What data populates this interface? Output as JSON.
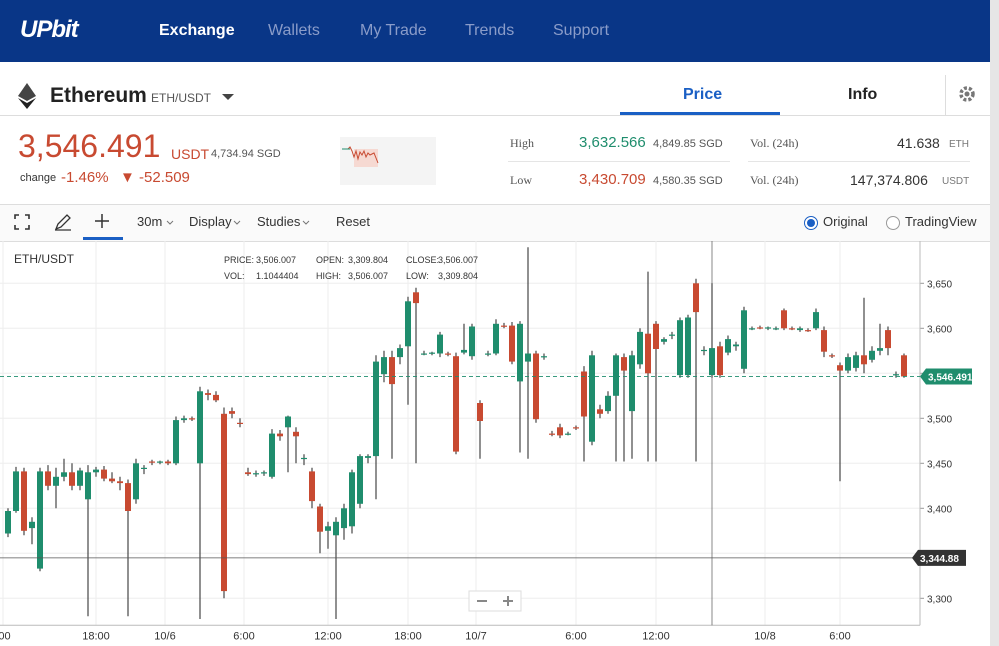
{
  "header": {
    "logo": "UPbit",
    "nav": [
      "Exchange",
      "Wallets",
      "My Trade",
      "Trends",
      "Support"
    ]
  },
  "market": {
    "name": "Ethereum",
    "pair": "ETH/USDT",
    "tabs": [
      "Price",
      "Info"
    ]
  },
  "ticker": {
    "price": "3,546.491",
    "currency": "USDT",
    "fiat": "4,734.94 SGD",
    "change_label": "change",
    "change_rate": "-1.46%",
    "change_amount": "▼ -52.509",
    "high": {
      "label": "High",
      "value": "3,632.566",
      "fiat": "4,849.85 SGD"
    },
    "low": {
      "label": "Low",
      "value": "3,430.709",
      "fiat": "4,580.35 SGD"
    },
    "vol_eth": {
      "label": "Vol. (24h)",
      "value": "41.638",
      "unit": "ETH"
    },
    "vol_usdt": {
      "label": "Vol. (24h)",
      "value": "147,374.806",
      "unit": "USDT"
    }
  },
  "toolbar": {
    "interval": "30m",
    "display": "Display",
    "studies": "Studies",
    "reset": "Reset",
    "modes": [
      "Original",
      "TradingView"
    ]
  },
  "chart_data": {
    "type": "candlestick",
    "symbol": "ETH/USDT",
    "info": [
      [
        "PRICE:",
        "3,506.007"
      ],
      [
        "OPEN:",
        "3,309.804"
      ],
      [
        "CLOSE:",
        "3,506.007"
      ],
      [
        "VOL:",
        "1.1044404"
      ],
      [
        "HIGH:",
        "3,506.007"
      ],
      [
        "LOW:",
        "3,309.804"
      ]
    ],
    "ylim": [
      3270,
      3697
    ],
    "yticks": [
      {
        "value": 3300,
        "label": "3,300"
      },
      {
        "value": 3350,
        "label": "3,350"
      },
      {
        "value": 3400,
        "label": "3,400"
      },
      {
        "value": 3450,
        "label": "3,450"
      },
      {
        "value": 3500,
        "label": "3,500"
      },
      {
        "value": 3550,
        "label": "3,550"
      },
      {
        "value": 3600,
        "label": "3,600"
      },
      {
        "value": 3650,
        "label": "3,650"
      }
    ],
    "x_labels": [
      ":00",
      "18:00",
      "10/6",
      "6:00",
      "12:00",
      "18:00",
      "10/7",
      "6:00",
      "12:00",
      "10/8",
      "6:00"
    ],
    "current_price": {
      "value": 3546.491,
      "label": "3,546.491"
    },
    "crosshair": {
      "value": 3344.88,
      "label": "3,344.88"
    },
    "up_color": "#1f8d6d",
    "down_color": "#c84a31",
    "candles": [
      {
        "open": 3372,
        "high": 3400,
        "low": 3368,
        "close": 3397
      },
      {
        "open": 3397,
        "high": 3446,
        "low": 3395,
        "close": 3441
      },
      {
        "open": 3441,
        "high": 3445,
        "low": 3370,
        "close": 3375
      },
      {
        "open": 3378,
        "high": 3390,
        "low": 3360,
        "close": 3385
      },
      {
        "open": 3333,
        "high": 3445,
        "low": 3330,
        "close": 3441
      },
      {
        "open": 3441,
        "high": 3448,
        "low": 3420,
        "close": 3425
      },
      {
        "open": 3425,
        "high": 3445,
        "low": 3400,
        "close": 3435
      },
      {
        "open": 3435,
        "high": 3455,
        "low": 3430,
        "close": 3440
      },
      {
        "open": 3440,
        "high": 3450,
        "low": 3420,
        "close": 3425
      },
      {
        "open": 3425,
        "high": 3445,
        "low": 3420,
        "close": 3442
      },
      {
        "open": 3410,
        "high": 3448,
        "low": 3280,
        "close": 3440
      },
      {
        "open": 3440,
        "high": 3446,
        "low": 3435,
        "close": 3443
      },
      {
        "open": 3443,
        "high": 3447,
        "low": 3430,
        "close": 3433
      },
      {
        "open": 3433,
        "high": 3440,
        "low": 3428,
        "close": 3430
      },
      {
        "open": 3430,
        "high": 3435,
        "low": 3420,
        "close": 3428
      },
      {
        "open": 3428,
        "high": 3432,
        "low": 3280,
        "close": 3397
      },
      {
        "open": 3410,
        "high": 3455,
        "low": 3405,
        "close": 3450
      },
      {
        "open": 3445,
        "high": 3448,
        "low": 3438,
        "close": 3445
      },
      {
        "open": 3452,
        "high": 3454,
        "low": 3448,
        "close": 3451
      },
      {
        "open": 3451,
        "high": 3453,
        "low": 3449,
        "close": 3452
      },
      {
        "open": 3452,
        "high": 3454,
        "low": 3448,
        "close": 3450
      },
      {
        "open": 3450,
        "high": 3502,
        "low": 3448,
        "close": 3498
      },
      {
        "open": 3498,
        "high": 3503,
        "low": 3495,
        "close": 3500
      },
      {
        "open": 3500,
        "high": 3502,
        "low": 3497,
        "close": 3499
      },
      {
        "open": 3450,
        "high": 3535,
        "low": 3277,
        "close": 3530
      },
      {
        "open": 3528,
        "high": 3532,
        "low": 3520,
        "close": 3526
      },
      {
        "open": 3526,
        "high": 3530,
        "low": 3518,
        "close": 3520
      },
      {
        "open": 3505,
        "high": 3512,
        "low": 3300,
        "close": 3308
      },
      {
        "open": 3508,
        "high": 3512,
        "low": 3500,
        "close": 3505
      },
      {
        "open": 3495,
        "high": 3500,
        "low": 3490,
        "close": 3494
      },
      {
        "open": 3440,
        "high": 3445,
        "low": 3436,
        "close": 3438
      },
      {
        "open": 3438,
        "high": 3442,
        "low": 3435,
        "close": 3439
      },
      {
        "open": 3439,
        "high": 3442,
        "low": 3436,
        "close": 3440
      },
      {
        "open": 3435,
        "high": 3488,
        "low": 3433,
        "close": 3483
      },
      {
        "open": 3483,
        "high": 3487,
        "low": 3475,
        "close": 3480
      },
      {
        "open": 3490,
        "high": 3503,
        "low": 3440,
        "close": 3502
      },
      {
        "open": 3485,
        "high": 3490,
        "low": 3450,
        "close": 3480
      },
      {
        "open": 3455,
        "high": 3460,
        "low": 3448,
        "close": 3456
      },
      {
        "open": 3441,
        "high": 3445,
        "low": 3400,
        "close": 3408
      },
      {
        "open": 3402,
        "high": 3405,
        "low": 3350,
        "close": 3374
      },
      {
        "open": 3375,
        "high": 3385,
        "low": 3355,
        "close": 3380
      },
      {
        "open": 3370,
        "high": 3390,
        "low": 3277,
        "close": 3385
      },
      {
        "open": 3378,
        "high": 3405,
        "low": 3365,
        "close": 3400
      },
      {
        "open": 3380,
        "high": 3443,
        "low": 3372,
        "close": 3440
      },
      {
        "open": 3405,
        "high": 3460,
        "low": 3400,
        "close": 3458
      },
      {
        "open": 3456,
        "high": 3460,
        "low": 3450,
        "close": 3458
      },
      {
        "open": 3458,
        "high": 3570,
        "low": 3410,
        "close": 3563
      },
      {
        "open": 3549,
        "high": 3575,
        "low": 3540,
        "close": 3568
      },
      {
        "open": 3568,
        "high": 3575,
        "low": 3455,
        "close": 3538
      },
      {
        "open": 3568,
        "high": 3582,
        "low": 3560,
        "close": 3578
      },
      {
        "open": 3580,
        "high": 3635,
        "low": 3515,
        "close": 3630
      },
      {
        "open": 3640,
        "high": 3645,
        "low": 3450,
        "close": 3628
      },
      {
        "open": 3572,
        "high": 3575,
        "low": 3570,
        "close": 3572
      },
      {
        "open": 3572,
        "high": 3574,
        "low": 3570,
        "close": 3573
      },
      {
        "open": 3572,
        "high": 3596,
        "low": 3568,
        "close": 3593
      },
      {
        "open": 3572,
        "high": 3574,
        "low": 3569,
        "close": 3571
      },
      {
        "open": 3569,
        "high": 3573,
        "low": 3460,
        "close": 3463
      },
      {
        "open": 3573,
        "high": 3605,
        "low": 3571,
        "close": 3576
      },
      {
        "open": 3569,
        "high": 3605,
        "low": 3565,
        "close": 3602
      },
      {
        "open": 3517,
        "high": 3520,
        "low": 3455,
        "close": 3497
      },
      {
        "open": 3572,
        "high": 3575,
        "low": 3569,
        "close": 3572
      },
      {
        "open": 3572,
        "high": 3610,
        "low": 3570,
        "close": 3605
      },
      {
        "open": 3603,
        "high": 3606,
        "low": 3600,
        "close": 3602
      },
      {
        "open": 3603,
        "high": 3607,
        "low": 3560,
        "close": 3563
      },
      {
        "open": 3541,
        "high": 3608,
        "low": 3462,
        "close": 3605
      },
      {
        "open": 3563,
        "high": 3690,
        "low": 3455,
        "close": 3572
      },
      {
        "open": 3572,
        "high": 3575,
        "low": 3495,
        "close": 3499
      },
      {
        "open": 3568,
        "high": 3572,
        "low": 3565,
        "close": 3569
      },
      {
        "open": 3483,
        "high": 3486,
        "low": 3480,
        "close": 3482
      },
      {
        "open": 3490,
        "high": 3494,
        "low": 3478,
        "close": 3481
      },
      {
        "open": 3483,
        "high": 3485,
        "low": 3481,
        "close": 3483
      },
      {
        "open": 3490,
        "high": 3492,
        "low": 3487,
        "close": 3489
      },
      {
        "open": 3552,
        "high": 3558,
        "low": 3452,
        "close": 3502
      },
      {
        "open": 3474,
        "high": 3575,
        "low": 3470,
        "close": 3570
      },
      {
        "open": 3510,
        "high": 3515,
        "low": 3500,
        "close": 3505
      },
      {
        "open": 3508,
        "high": 3530,
        "low": 3505,
        "close": 3525
      },
      {
        "open": 3525,
        "high": 3572,
        "low": 3452,
        "close": 3570
      },
      {
        "open": 3568,
        "high": 3572,
        "low": 3452,
        "close": 3553
      },
      {
        "open": 3508,
        "high": 3575,
        "low": 3455,
        "close": 3570
      },
      {
        "open": 3560,
        "high": 3600,
        "low": 3555,
        "close": 3596
      },
      {
        "open": 3594,
        "high": 3663,
        "low": 3452,
        "close": 3550
      },
      {
        "open": 3605,
        "high": 3608,
        "low": 3452,
        "close": 3577
      },
      {
        "open": 3585,
        "high": 3590,
        "low": 3582,
        "close": 3588
      },
      {
        "open": 3592,
        "high": 3596,
        "low": 3588,
        "close": 3593
      },
      {
        "open": 3548,
        "high": 3612,
        "low": 3545,
        "close": 3609
      },
      {
        "open": 3548,
        "high": 3615,
        "low": 3545,
        "close": 3612
      },
      {
        "open": 3650,
        "high": 3655,
        "low": 3452,
        "close": 3618
      },
      {
        "open": 3575,
        "high": 3580,
        "low": 3570,
        "close": 3576
      },
      {
        "open": 3548,
        "high": 3650,
        "low": 3545,
        "close": 3578
      },
      {
        "open": 3580,
        "high": 3585,
        "low": 3545,
        "close": 3548
      },
      {
        "open": 3573,
        "high": 3592,
        "low": 3570,
        "close": 3588
      },
      {
        "open": 3580,
        "high": 3585,
        "low": 3575,
        "close": 3582
      },
      {
        "open": 3555,
        "high": 3624,
        "low": 3550,
        "close": 3620
      },
      {
        "open": 3600,
        "high": 3602,
        "low": 3598,
        "close": 3600
      },
      {
        "open": 3601,
        "high": 3603,
        "low": 3599,
        "close": 3600
      },
      {
        "open": 3600,
        "high": 3602,
        "low": 3598,
        "close": 3601
      },
      {
        "open": 3600,
        "high": 3602,
        "low": 3598,
        "close": 3600
      },
      {
        "open": 3620,
        "high": 3622,
        "low": 3598,
        "close": 3600
      },
      {
        "open": 3600,
        "high": 3602,
        "low": 3598,
        "close": 3599
      },
      {
        "open": 3598,
        "high": 3602,
        "low": 3596,
        "close": 3600
      },
      {
        "open": 3598,
        "high": 3600,
        "low": 3596,
        "close": 3597
      },
      {
        "open": 3600,
        "high": 3622,
        "low": 3598,
        "close": 3618
      },
      {
        "open": 3598,
        "high": 3602,
        "low": 3568,
        "close": 3574
      },
      {
        "open": 3570,
        "high": 3572,
        "low": 3567,
        "close": 3569
      },
      {
        "open": 3559,
        "high": 3562,
        "low": 3430,
        "close": 3553
      },
      {
        "open": 3553,
        "high": 3572,
        "low": 3550,
        "close": 3568
      },
      {
        "open": 3556,
        "high": 3574,
        "low": 3552,
        "close": 3570
      },
      {
        "open": 3570,
        "high": 3634,
        "low": 3550,
        "close": 3560
      },
      {
        "open": 3565,
        "high": 3580,
        "low": 3562,
        "close": 3575
      },
      {
        "open": 3575,
        "high": 3605,
        "low": 3570,
        "close": 3578
      },
      {
        "open": 3598,
        "high": 3602,
        "low": 3570,
        "close": 3578
      },
      {
        "open": 3548,
        "high": 3552,
        "low": 3545,
        "close": 3549
      },
      {
        "open": 3570,
        "high": 3572,
        "low": 3545,
        "close": 3546.491
      }
    ]
  }
}
